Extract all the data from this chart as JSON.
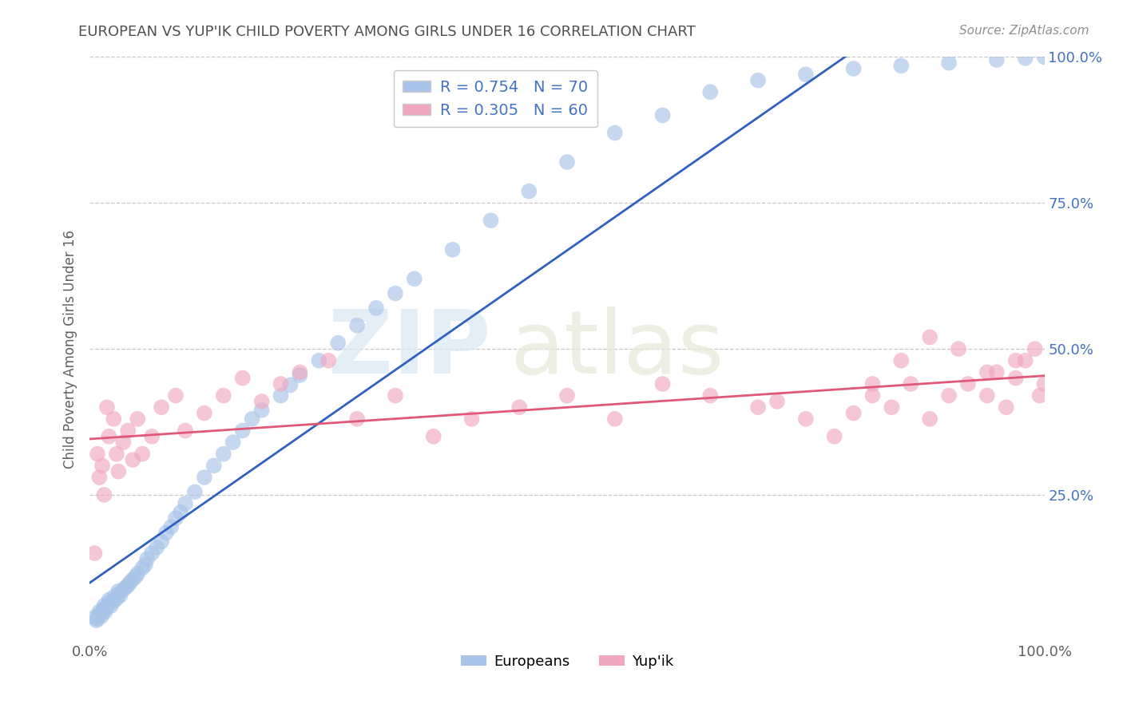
{
  "title": "EUROPEAN VS YUP'IK CHILD POVERTY AMONG GIRLS UNDER 16 CORRELATION CHART",
  "source": "Source: ZipAtlas.com",
  "ylabel": "Child Poverty Among Girls Under 16",
  "xlim": [
    0.0,
    1.0
  ],
  "ylim": [
    0.0,
    1.0
  ],
  "europeans_color": "#a8c4e8",
  "yupik_color": "#f0a8c0",
  "europeans_line_color": "#3060c0",
  "yupik_line_color": "#e05878",
  "right_tick_color": "#4472c4",
  "R_european": 0.754,
  "N_european": 70,
  "R_yupik": 0.305,
  "N_yupik": 60,
  "background_color": "#ffffff",
  "grid_color": "#c8c8c8",
  "title_color": "#505050",
  "eu_x": [
    0.005,
    0.007,
    0.008,
    0.01,
    0.01,
    0.012,
    0.013,
    0.015,
    0.015,
    0.016,
    0.018,
    0.02,
    0.02,
    0.022,
    0.025,
    0.025,
    0.028,
    0.03,
    0.03,
    0.032,
    0.035,
    0.038,
    0.04,
    0.042,
    0.045,
    0.048,
    0.05,
    0.055,
    0.058,
    0.06,
    0.065,
    0.07,
    0.075,
    0.08,
    0.085,
    0.09,
    0.095,
    0.1,
    0.11,
    0.12,
    0.13,
    0.14,
    0.15,
    0.16,
    0.17,
    0.18,
    0.2,
    0.21,
    0.22,
    0.24,
    0.26,
    0.28,
    0.3,
    0.32,
    0.34,
    0.38,
    0.42,
    0.46,
    0.5,
    0.55,
    0.6,
    0.65,
    0.7,
    0.75,
    0.8,
    0.85,
    0.9,
    0.95,
    0.98,
    1.0
  ],
  "eu_y": [
    0.04,
    0.035,
    0.038,
    0.045,
    0.05,
    0.042,
    0.048,
    0.055,
    0.06,
    0.05,
    0.058,
    0.065,
    0.07,
    0.06,
    0.068,
    0.075,
    0.072,
    0.08,
    0.085,
    0.078,
    0.088,
    0.092,
    0.095,
    0.1,
    0.105,
    0.11,
    0.115,
    0.125,
    0.13,
    0.14,
    0.15,
    0.16,
    0.17,
    0.185,
    0.195,
    0.21,
    0.22,
    0.235,
    0.255,
    0.28,
    0.3,
    0.32,
    0.34,
    0.36,
    0.38,
    0.395,
    0.42,
    0.438,
    0.455,
    0.48,
    0.51,
    0.54,
    0.57,
    0.595,
    0.62,
    0.67,
    0.72,
    0.77,
    0.82,
    0.87,
    0.9,
    0.94,
    0.96,
    0.97,
    0.98,
    0.985,
    0.99,
    0.995,
    0.998,
    1.0
  ],
  "yu_x": [
    0.005,
    0.008,
    0.01,
    0.013,
    0.015,
    0.018,
    0.02,
    0.025,
    0.028,
    0.03,
    0.035,
    0.04,
    0.045,
    0.05,
    0.055,
    0.065,
    0.075,
    0.09,
    0.1,
    0.12,
    0.14,
    0.16,
    0.18,
    0.2,
    0.22,
    0.25,
    0.28,
    0.32,
    0.36,
    0.4,
    0.45,
    0.5,
    0.55,
    0.6,
    0.65,
    0.7,
    0.72,
    0.75,
    0.78,
    0.8,
    0.82,
    0.84,
    0.86,
    0.88,
    0.9,
    0.92,
    0.94,
    0.95,
    0.96,
    0.97,
    0.98,
    0.99,
    0.995,
    1.0,
    0.97,
    0.94,
    0.91,
    0.88,
    0.85,
    0.82
  ],
  "yu_y": [
    0.15,
    0.32,
    0.28,
    0.3,
    0.25,
    0.4,
    0.35,
    0.38,
    0.32,
    0.29,
    0.34,
    0.36,
    0.31,
    0.38,
    0.32,
    0.35,
    0.4,
    0.42,
    0.36,
    0.39,
    0.42,
    0.45,
    0.41,
    0.44,
    0.46,
    0.48,
    0.38,
    0.42,
    0.35,
    0.38,
    0.4,
    0.42,
    0.38,
    0.44,
    0.42,
    0.4,
    0.41,
    0.38,
    0.35,
    0.39,
    0.42,
    0.4,
    0.44,
    0.38,
    0.42,
    0.44,
    0.42,
    0.46,
    0.4,
    0.45,
    0.48,
    0.5,
    0.42,
    0.44,
    0.48,
    0.46,
    0.5,
    0.52,
    0.48,
    0.44
  ]
}
